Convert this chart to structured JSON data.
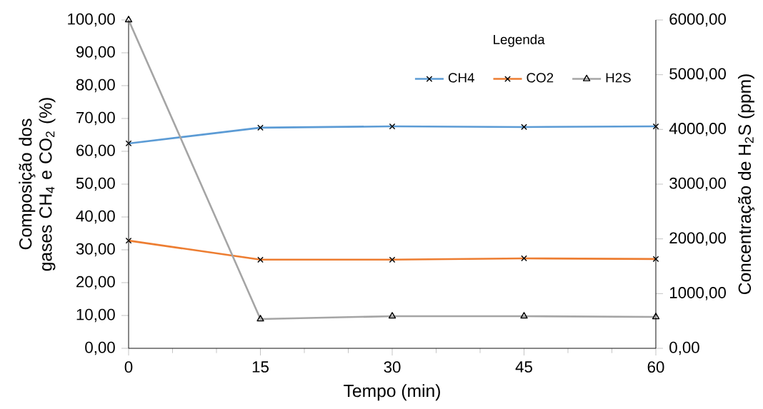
{
  "chart_data": {
    "type": "line",
    "xlabel": "Tempo (min)",
    "ylabel": "Composição dos gases CH$_{4}$ e CO$_{2}$ (%)",
    "y2label": "Concentração de H$_{2}$S (ppm)",
    "legend_title": "Legenda",
    "legend": "top right",
    "grid": false,
    "line_style": "solid",
    "x": [
      0,
      15,
      30,
      45,
      60
    ],
    "xlim": [
      0,
      60
    ],
    "xticks": [
      0,
      15,
      30,
      45,
      60
    ],
    "ylim": [
      0,
      100
    ],
    "yticks": [
      {
        "value": 0,
        "label": "0,00"
      },
      {
        "value": 10,
        "label": "10,00"
      },
      {
        "value": 20,
        "label": "20,00"
      },
      {
        "value": 30,
        "label": "30,00"
      },
      {
        "value": 40,
        "label": "40,00"
      },
      {
        "value": 50,
        "label": "50,00"
      },
      {
        "value": 60,
        "label": "60,00"
      },
      {
        "value": 70,
        "label": "70,00"
      },
      {
        "value": 80,
        "label": "80,00"
      },
      {
        "value": 90,
        "label": "90,00"
      },
      {
        "value": 100,
        "label": "100,00"
      }
    ],
    "y2lim": [
      0,
      6000
    ],
    "y2ticks": [
      {
        "value": 0,
        "label": "0,00"
      },
      {
        "value": 1000,
        "label": "1000,00"
      },
      {
        "value": 2000,
        "label": "2000,00"
      },
      {
        "value": 3000,
        "label": "3000,00"
      },
      {
        "value": 4000,
        "label": "4000,00"
      },
      {
        "value": 5000,
        "label": "5000,00"
      },
      {
        "value": 6000,
        "label": "6000,00"
      }
    ],
    "series": [
      {
        "name": "CH4",
        "color": "#5b9bd5",
        "marker": "cross",
        "values": [
          62.4,
          67.2,
          67.6,
          67.4,
          67.6
        ]
      },
      {
        "name": "CO2",
        "color": "#ed7d31",
        "marker": "cross",
        "values": [
          32.8,
          27.0,
          27.0,
          27.4,
          27.2
        ]
      },
      {
        "name": "H2S",
        "color": "#a5a5a5",
        "marker": "triangle",
        "axis": "y2",
        "values": [
          6000,
          535,
          587,
          587,
          574
        ]
      }
    ]
  }
}
